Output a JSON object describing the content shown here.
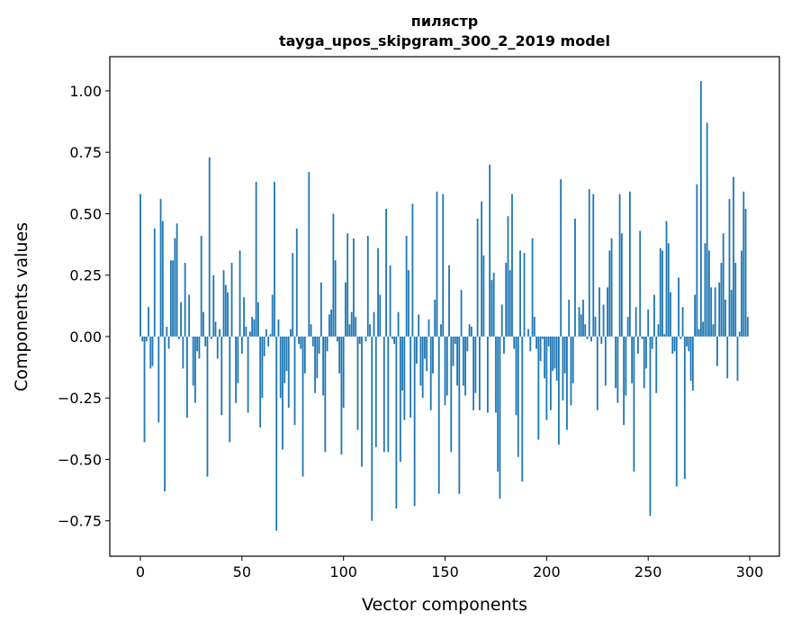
{
  "chart_data": {
    "type": "bar",
    "title": "пилястр",
    "subtitle": "tayga_upos_skipgram_300_2_2019 model",
    "xlabel": "Vector components",
    "ylabel": "Components values",
    "xlim": [
      -15.06,
      314.6
    ],
    "ylim": [
      -0.894,
      1.139
    ],
    "xticks": [
      0,
      50,
      100,
      150,
      200,
      250,
      300
    ],
    "yticks": [
      -0.75,
      -0.5,
      -0.25,
      0.0,
      0.25,
      0.5,
      0.75,
      1.0
    ],
    "ytick_labels": [
      "−0.75",
      "−0.50",
      "−0.25",
      "0.00",
      "0.25",
      "0.50",
      "0.75",
      "1.00"
    ],
    "grid": false,
    "bar_color": "#1f77b4",
    "values": [
      0.58,
      -0.02,
      -0.43,
      -0.02,
      0.12,
      -0.13,
      -0.12,
      0.44,
      0.0,
      -0.35,
      0.56,
      0.47,
      -0.63,
      0.04,
      -0.05,
      0.31,
      0.31,
      0.4,
      0.46,
      -0.01,
      0.14,
      -0.13,
      0.3,
      -0.33,
      0.17,
      0.0,
      -0.2,
      -0.27,
      -0.06,
      -0.09,
      0.41,
      0.1,
      -0.04,
      -0.57,
      0.73,
      -0.01,
      0.25,
      0.06,
      -0.09,
      0.03,
      -0.32,
      0.27,
      0.21,
      0.18,
      -0.43,
      0.3,
      0.0,
      -0.27,
      -0.19,
      0.35,
      -0.07,
      0.16,
      0.04,
      -0.31,
      0.02,
      0.08,
      0.07,
      0.63,
      0.14,
      -0.37,
      -0.25,
      -0.08,
      0.03,
      -0.04,
      0.01,
      0.17,
      0.63,
      -0.79,
      0.07,
      -0.25,
      -0.46,
      -0.19,
      -0.14,
      -0.29,
      0.03,
      0.34,
      -0.36,
      0.44,
      -0.03,
      -0.05,
      -0.57,
      -0.15,
      0.0,
      0.67,
      0.05,
      -0.04,
      -0.23,
      -0.17,
      -0.07,
      0.22,
      -0.24,
      -0.47,
      -0.06,
      0.09,
      0.11,
      0.5,
      0.31,
      -0.02,
      -0.15,
      -0.48,
      -0.29,
      0.22,
      0.42,
      0.05,
      0.1,
      0.4,
      0.08,
      -0.38,
      -0.03,
      -0.53,
      0.0,
      -0.02,
      0.41,
      0.05,
      -0.75,
      0.1,
      -0.45,
      0.36,
      0.17,
      0.0,
      -0.47,
      0.52,
      -0.47,
      0.29,
      -0.01,
      -0.03,
      -0.7,
      0.1,
      -0.51,
      -0.22,
      -0.34,
      0.41,
      0.27,
      -0.33,
      0.54,
      -0.69,
      -0.11,
      0.09,
      -0.2,
      -0.25,
      -0.09,
      -0.14,
      0.07,
      -0.3,
      -0.15,
      0.15,
      0.59,
      -0.64,
      0.05,
      0.58,
      -0.28,
      -0.24,
      0.29,
      -0.47,
      -0.12,
      -0.03,
      -0.2,
      -0.64,
      0.19,
      -0.2,
      -0.24,
      -0.06,
      0.05,
      0.04,
      -0.3,
      -0.23,
      0.48,
      -0.3,
      0.55,
      0.33,
      0.0,
      -0.31,
      0.7,
      0.23,
      0.26,
      -0.31,
      -0.55,
      -0.66,
      0.13,
      -0.07,
      0.3,
      0.49,
      0.27,
      0.58,
      -0.05,
      -0.32,
      -0.49,
      0.35,
      -0.59,
      0.34,
      0.0,
      0.03,
      -0.06,
      0.4,
      0.08,
      -0.05,
      -0.42,
      -0.1,
      -0.01,
      -0.17,
      -0.34,
      -0.04,
      -0.3,
      -0.14,
      -0.13,
      -0.18,
      -0.44,
      0.64,
      -0.26,
      -0.15,
      -0.38,
      0.15,
      -0.28,
      -0.19,
      0.48,
      0.0,
      0.12,
      0.09,
      0.15,
      0.05,
      -0.01,
      0.6,
      -0.02,
      0.58,
      0.08,
      -0.3,
      0.2,
      -0.03,
      0.13,
      -0.2,
      0.2,
      0.35,
      0.4,
      0.0,
      -0.21,
      -0.27,
      0.58,
      0.42,
      -0.36,
      -0.24,
      0.08,
      0.59,
      -0.19,
      -0.55,
      0.12,
      -0.07,
      0.43,
      -0.01,
      -0.21,
      -0.13,
      0.11,
      -0.73,
      -0.05,
      0.17,
      -0.23,
      0.05,
      0.36,
      0.35,
      0.01,
      0.47,
      0.38,
      0.18,
      -0.07,
      -0.06,
      -0.61,
      0.24,
      -0.01,
      0.12,
      -0.58,
      -0.04,
      -0.06,
      -0.18,
      -0.22,
      0.17,
      0.62,
      0.03,
      1.04,
      0.06,
      0.38,
      0.87,
      0.35,
      0.2,
      0.05,
      0.2,
      -0.12,
      0.22,
      0.3,
      0.42,
      0.15,
      -0.17,
      0.56,
      0.19,
      0.65,
      0.3,
      -0.18,
      0.02,
      0.35,
      0.59,
      0.52,
      0.08
    ]
  }
}
